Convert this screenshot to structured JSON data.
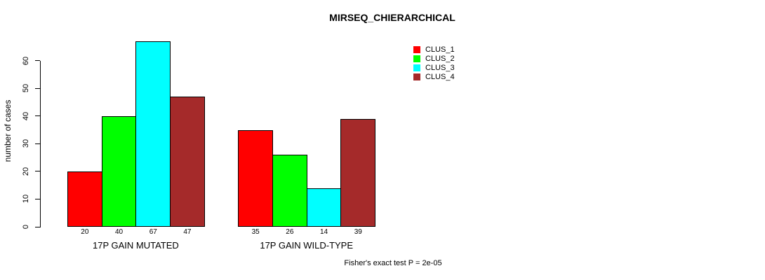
{
  "title": "MIRSEQ_CHIERARCHICAL",
  "footer": "Fisher's exact test P = 2e-05",
  "y_axis": {
    "label": "number of cases",
    "ticks": [
      "0",
      "10",
      "20",
      "30",
      "40",
      "50",
      "60"
    ]
  },
  "x_axis": {
    "group_labels": [
      "17P GAIN MUTATED",
      "17P GAIN WILD-TYPE"
    ]
  },
  "legend": {
    "items": [
      {
        "label": "CLUS_1",
        "color": "#FF0000"
      },
      {
        "label": "CLUS_2",
        "color": "#00FF00"
      },
      {
        "label": "CLUS_3",
        "color": "#00FFFF"
      },
      {
        "label": "CLUS_4",
        "color": "#A52A2A"
      }
    ]
  },
  "chart_data": {
    "type": "bar",
    "title": "MIRSEQ_CHIERARCHICAL",
    "xlabel": "",
    "ylabel": "number of cases",
    "ylim": [
      0,
      60
    ],
    "y_tick_step": 10,
    "grid": false,
    "legend_position": "top-right",
    "categories": [
      "17P GAIN MUTATED",
      "17P GAIN WILD-TYPE"
    ],
    "series": [
      {
        "name": "CLUS_1",
        "color": "#FF0000",
        "values": [
          20,
          35
        ]
      },
      {
        "name": "CLUS_2",
        "color": "#00FF00",
        "values": [
          40,
          26
        ]
      },
      {
        "name": "CLUS_3",
        "color": "#00FFFF",
        "values": [
          67,
          14
        ]
      },
      {
        "name": "CLUS_4",
        "color": "#A52A2A",
        "values": [
          47,
          39
        ]
      }
    ],
    "bar_value_labels": [
      [
        "20",
        "40",
        "67",
        "47"
      ],
      [
        "35",
        "26",
        "14",
        "39"
      ]
    ],
    "annotation": "Fisher's exact test P = 2e-05"
  }
}
